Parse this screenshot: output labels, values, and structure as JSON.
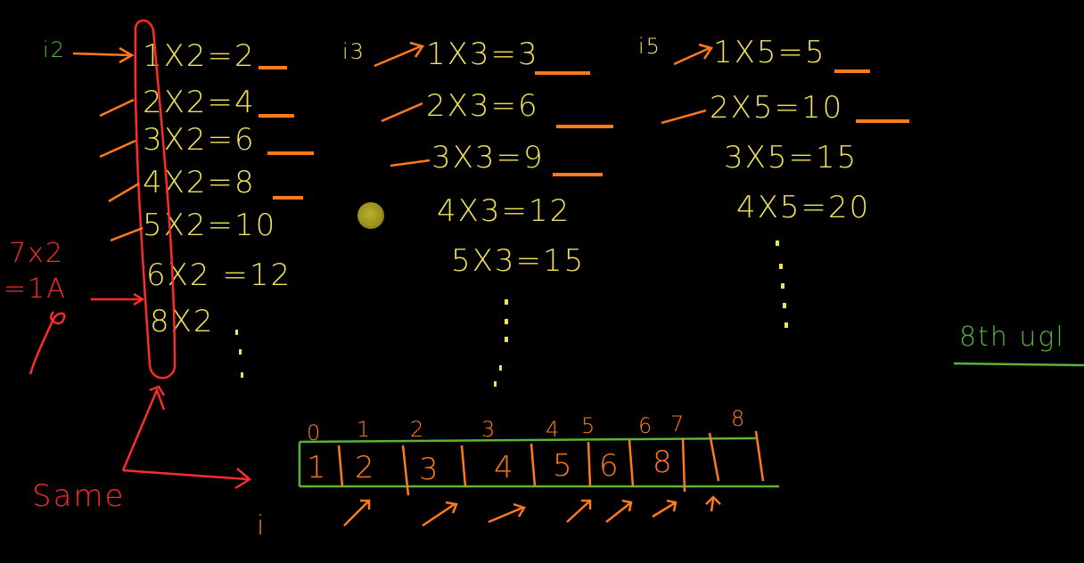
{
  "board": {
    "background": "#000000",
    "colors": {
      "formula": "#f2e25a",
      "note": "#ff2b2b",
      "index": "#58b43a",
      "pointer": "#ff7a1a"
    }
  },
  "table_i2": {
    "label": "i2",
    "rows": [
      "1X2=2",
      "2X2=4",
      "3X2=6",
      "4X2=8",
      "5X2=10",
      "6X2 =12",
      "8X2"
    ],
    "dots": ":"
  },
  "table_i3": {
    "label": "i3",
    "rows": [
      "1X3=3",
      "2X3=6",
      "3X3=9",
      "4X3=12",
      "5X3=15"
    ],
    "dots": ":"
  },
  "table_i5": {
    "label": "i5",
    "rows": [
      "1X5=5",
      "2X5=10",
      "3X5=15",
      "4X5=20"
    ],
    "dots": ":"
  },
  "side_note": {
    "line1": "7x2",
    "line2": "=1A",
    "label": "Same"
  },
  "right_note": "8th ugl",
  "array": {
    "indices": [
      "0",
      "1",
      "2",
      "3",
      "4",
      "5",
      "6",
      "7",
      "8"
    ],
    "values": [
      "1",
      "2",
      "3",
      "4",
      "5",
      "6",
      "8",
      "",
      ""
    ],
    "pointer_label": "i"
  },
  "cursor_icon": "pen-cursor-icon"
}
